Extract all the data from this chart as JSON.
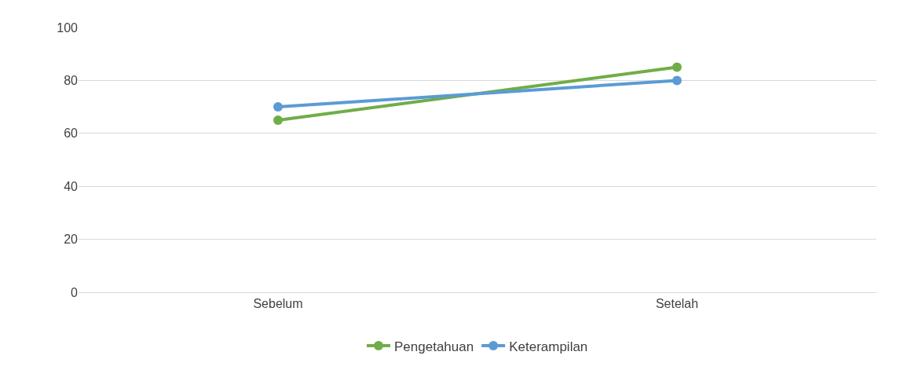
{
  "chart_data": {
    "type": "line",
    "categories": [
      "Sebelum",
      "Setelah"
    ],
    "series": [
      {
        "name": "Pengetahuan",
        "color": "#70ad47",
        "values": [
          65,
          85
        ]
      },
      {
        "name": "Keterampilan",
        "color": "#5b9bd5",
        "values": [
          70,
          80
        ]
      }
    ],
    "ylim": [
      0,
      100
    ],
    "yticks": [
      0,
      20,
      40,
      60,
      80,
      100
    ],
    "grid": "y",
    "legend": "bottom",
    "marker": "circle",
    "line_style": "solid"
  }
}
